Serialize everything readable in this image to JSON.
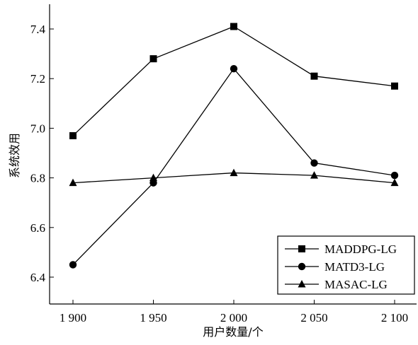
{
  "chart_data": {
    "type": "line",
    "title": "",
    "xlabel": "用户数量/个",
    "ylabel": "系统效用",
    "x": [
      1900,
      1950,
      2000,
      2050,
      2100
    ],
    "x_tick_labels": [
      "1 900",
      "1 950",
      "2 000",
      "2 050",
      "2 100"
    ],
    "xlim": [
      1900,
      2100
    ],
    "ylim": [
      6.3,
      7.5
    ],
    "y_ticks": [
      6.4,
      6.6,
      6.8,
      7.0,
      7.2,
      7.4
    ],
    "y_tick_labels": [
      "6.4",
      "6.6",
      "6.8",
      "7.0",
      "7.2",
      "7.4"
    ],
    "grid": false,
    "legend_position": "bottom-right",
    "series": [
      {
        "name": "MADDPG-LG",
        "marker": "square",
        "values": [
          6.97,
          7.28,
          7.41,
          7.21,
          7.17
        ]
      },
      {
        "name": "MATD3-LG",
        "marker": "circle",
        "values": [
          6.45,
          6.78,
          7.24,
          6.86,
          6.81
        ]
      },
      {
        "name": "MASAC-LG",
        "marker": "triangle",
        "values": [
          6.78,
          6.8,
          6.82,
          6.81,
          6.78
        ]
      }
    ],
    "colors": {
      "line": "#000000",
      "background": "#ffffff"
    }
  }
}
